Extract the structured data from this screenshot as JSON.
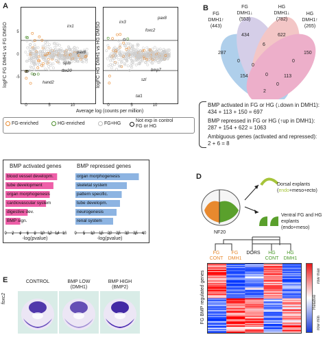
{
  "panelA": {
    "letter": "A",
    "left": {
      "ylabel": "logFC FG DMH1 vs FG DMSO",
      "genes": [
        "pax8",
        "irx1",
        "spib",
        "tbx20",
        "hand2"
      ],
      "yticks": [
        "5",
        "0",
        "-5"
      ],
      "xticks": [
        "0",
        "5",
        "10"
      ]
    },
    "right": {
      "ylabel": "logFC HG DMH1 vs HG DMSO",
      "genes": [
        "irx3",
        "pax8",
        "foxc2",
        "bmp7",
        "szl",
        "tal1"
      ],
      "xticks": [
        "0",
        "5",
        "10"
      ]
    },
    "xlabel": "Average log (counts per million)",
    "legend": [
      {
        "label": "FG-enriched",
        "color": "#e8892e"
      },
      {
        "label": "HG-enriched",
        "color": "#4a8c2a"
      },
      {
        "label": "FG=HG",
        "color": "#bbbbbb"
      },
      {
        "label": "Not exp in control",
        "color": "#111111"
      },
      {
        "label": "FG or HG",
        "color": ""
      }
    ]
  },
  "panelB": {
    "letter": "B",
    "sets": [
      {
        "name": "FG",
        "sub": "DMH1",
        "arrow": "↑",
        "count": "(443)",
        "color": "#6fa8dc"
      },
      {
        "name": "FG",
        "sub": "DMH1",
        "arrow": "↓",
        "count": "(553)",
        "color": "#b4a7d6"
      },
      {
        "name": "HG",
        "sub": "DMH1",
        "arrow": "↓",
        "count": "(782)",
        "color": "#ea9999"
      },
      {
        "name": "HG",
        "sub": "DMH1",
        "arrow": "↑",
        "count": "(265)",
        "color": "#e06fa0"
      }
    ],
    "regions": [
      "287",
      "434",
      "622",
      "150",
      "6",
      "0",
      "0",
      "0",
      "154",
      "0",
      "113",
      "2",
      "0"
    ],
    "summary": [
      "BMP activated in FG or HG (↓down in DMH1):",
      "434 + 113 + 150 = 697",
      "BMP repressed in FG or HG (↑up in DMH1):",
      "287 + 154 + 622 = 1063",
      "Ambiguous genes (activated and repressed):",
      "2 + 6 = 8"
    ]
  },
  "panelC": {
    "letter": "C",
    "activated": {
      "title": "BMP activated genes",
      "color": "#ee5fa8",
      "items": [
        {
          "label": "blood vessel developm.",
          "value": 14
        },
        {
          "label": "tube development",
          "value": 13
        },
        {
          "label": "organ morphogenesis",
          "value": 12
        },
        {
          "label": "cardiovascular system",
          "value": 11
        },
        {
          "label": "digestive dev.",
          "value": 6
        },
        {
          "label": "BMP sign.",
          "value": 4
        }
      ],
      "xticks": [
        "0",
        "2",
        "4",
        "6",
        "8",
        "10",
        "12",
        "14",
        "16"
      ],
      "xmax": 16,
      "xlabel": "-log(pvalue)"
    },
    "repressed": {
      "title": "BMP repressed genes",
      "color": "#8db4e2",
      "items": [
        {
          "label": "organ morphogenesis",
          "value": 37
        },
        {
          "label": "skeletal system",
          "value": 30
        },
        {
          "label": "pattern specific.",
          "value": 27
        },
        {
          "label": "tube developm.",
          "value": 26
        },
        {
          "label": "neurogenesis",
          "value": 24
        },
        {
          "label": "renal system",
          "value": 22
        }
      ],
      "xticks": [
        "0",
        "5",
        "10",
        "15",
        "20",
        "25",
        "30",
        "35",
        "40"
      ],
      "xmax": 40,
      "xlabel": "-log(pvalue)"
    }
  },
  "panelD": {
    "letter": "D",
    "stage": "NF20",
    "dorsal_line1": "Dorsal explants",
    "dorsal_line2_pre": "(",
    "dorsal_endo": "endo",
    "dorsal_line2_post": "+meso+ecto)",
    "ventral_line1": "Ventral FG and HG",
    "ventral_line2": "explants (endo+meso)",
    "columns": [
      {
        "line1": "FG",
        "line2": "CONT",
        "color": "#e8892e"
      },
      {
        "line1": "FG",
        "line2": "DMH1",
        "color": "#e8892e"
      },
      {
        "line1": "DORS",
        "line2": "",
        "color": "#111111"
      },
      {
        "line1": "HG",
        "line2": "CONT",
        "color": "#4a9a2a"
      },
      {
        "line1": "HG",
        "line2": "DMH1",
        "color": "#4a9a2a"
      }
    ],
    "ylabel": "FG BMP regulated genes",
    "scale_max": "row max",
    "scale_mid": "Relative",
    "scale_min": "row min"
  },
  "panelE": {
    "letter": "E",
    "gene": "foxc2",
    "conditions": [
      {
        "line1": "CONTROL",
        "line2": ""
      },
      {
        "line1": "BMP LOW",
        "line2": "(DMH1)"
      },
      {
        "line1": "BMP HIGH",
        "line2": "(BMP2)"
      }
    ]
  }
}
